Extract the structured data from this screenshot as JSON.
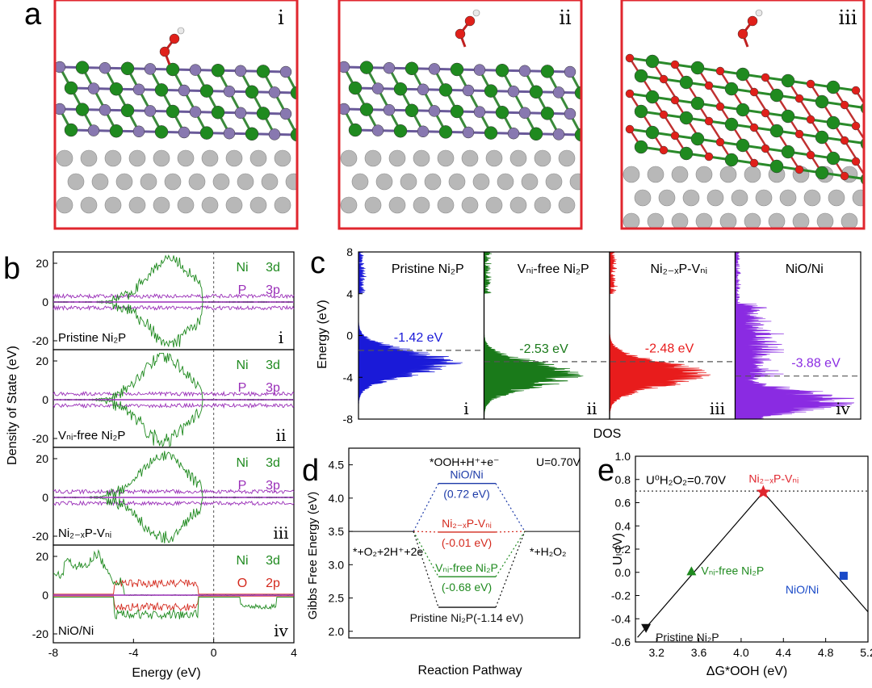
{
  "panel_labels": {
    "a": "a",
    "b": "b",
    "c": "c",
    "d": "d",
    "e": "e"
  },
  "panel_a": {
    "structures": [
      {
        "id": "i",
        "label": "i"
      },
      {
        "id": "ii",
        "label": "ii"
      },
      {
        "id": "iii",
        "label": "iii"
      }
    ],
    "colors": {
      "frame": "#e0262e",
      "ni": "#1f8a1f",
      "p": "#8878b0",
      "o": "#e0201a",
      "substrate": "#b8b8b8",
      "h": "#e8e8e8"
    }
  },
  "panel_b": {
    "ylabel": "Density of State (eV)",
    "xlabel": "Energy (eV)",
    "xticks": [
      "-8",
      "-4",
      "0",
      "4"
    ],
    "yticks": [
      "20",
      "0",
      "-20"
    ],
    "subplots": [
      {
        "name": "Pristine Ni₂P",
        "roman": "i",
        "legend": [
          [
            "Ni",
            "3d"
          ],
          [
            "P",
            "3p"
          ]
        ]
      },
      {
        "name": "Vₙᵢ-free Ni₂P",
        "roman": "ii",
        "legend": [
          [
            "Ni",
            "3d"
          ],
          [
            "P",
            "3p"
          ]
        ]
      },
      {
        "name": "Ni₂₋ₓP-Vₙᵢ",
        "roman": "iii",
        "legend": [
          [
            "Ni",
            "3d"
          ],
          [
            "P",
            "3p"
          ]
        ]
      },
      {
        "name": "NiO/Ni",
        "roman": "iv",
        "legend": [
          [
            "Ni",
            "3d"
          ],
          [
            "O",
            "2p"
          ]
        ]
      }
    ],
    "colors": {
      "ni": "#1f8a1f",
      "p": "#9a2fb8",
      "o": "#d42a1e"
    }
  },
  "panel_c": {
    "ylabel": "Energy (eV)",
    "xlabel": "DOS",
    "yticks": [
      "8",
      "4",
      "0",
      "-4",
      "-8"
    ],
    "subplots": [
      {
        "title": "Pristine Ni₂P",
        "center": "-1.42 eV",
        "roman": "i",
        "color": "#1a1ad8"
      },
      {
        "title": "Vₙᵢ-free Ni₂P",
        "center": "-2.53 eV",
        "roman": "ii",
        "color": "#1a7a1a"
      },
      {
        "title": "Ni₂₋ₓP-Vₙᵢ",
        "center": "-2.48 eV",
        "roman": "iii",
        "color": "#e81c1c"
      },
      {
        "title": "NiO/Ni",
        "center": "-3.88 eV",
        "roman": "iv",
        "color": "#8a2be2"
      }
    ]
  },
  "panel_d": {
    "ylabel": "Gibbs Free Energy (eV)",
    "xlabel": "Reaction Pathway",
    "yticks": [
      "4.5",
      "4.0",
      "3.5",
      "3.0",
      "2.5",
      "2.0"
    ],
    "top_label": "*OOH+H⁺+e⁻",
    "u_label": "U=0.70V",
    "left_label": "*+O₂+2H⁺+2e",
    "right_label": "*+H₂O₂",
    "levels": [
      {
        "name": "NiO/Ni",
        "delta": "(0.72 eV)",
        "energy": 4.22,
        "color": "#1c3aa8"
      },
      {
        "name": "Ni₂₋ₓP-Vₙᵢ",
        "delta": "(-0.01 eV)",
        "energy": 3.49,
        "color": "#d42a1e"
      },
      {
        "name": "Vₙᵢ-free Ni₂P",
        "delta": "(-0.68 eV)",
        "energy": 2.82,
        "color": "#1f8a1f"
      },
      {
        "name": "Pristine Ni₂P",
        "delta": "(-1.14 eV)",
        "energy": 2.36,
        "color": "#111111",
        "inline": true
      }
    ],
    "baseline": 3.5
  },
  "panel_e": {
    "ylabel": "Uₗ (V)",
    "xlabel": "ΔG*OOH (eV)",
    "xticks": [
      "3.2",
      "3.6",
      "4.0",
      "4.4",
      "4.8",
      "5.2"
    ],
    "yticks": [
      "1.0",
      "0.8",
      "0.6",
      "0.4",
      "0.2",
      "0.0",
      "-0.2",
      "-0.4",
      "-0.6"
    ],
    "eq_label": "U⁰H₂O₂=0.70V",
    "points": [
      {
        "name": "Pristine Ni₂P",
        "x": 3.1,
        "y": -0.48,
        "marker": "triangle-down",
        "color": "#111111"
      },
      {
        "name": "Vₙᵢ-free Ni₂P",
        "x": 3.53,
        "y": 0.01,
        "marker": "triangle-up",
        "color": "#1f8a1f"
      },
      {
        "name": "Ni₂₋ₓP-Vₙᵢ",
        "x": 4.21,
        "y": 0.69,
        "marker": "star",
        "color": "#e0262e"
      },
      {
        "name": "NiO/Ni",
        "x": 4.97,
        "y": -0.03,
        "marker": "square",
        "color": "#1a4ac8"
      }
    ]
  }
}
